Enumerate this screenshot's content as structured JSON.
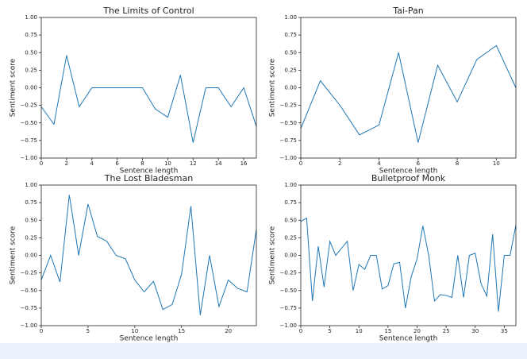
{
  "chart_data": [
    {
      "type": "line",
      "title": "The Limits of Control",
      "xlabel": "Sentence length",
      "ylabel": "Sentiment score",
      "color": "#1f77b4",
      "x": [
        0,
        1,
        2,
        3,
        4,
        5,
        6,
        7,
        8,
        9,
        10,
        11,
        12,
        13,
        14,
        15,
        16,
        17
      ],
      "values": [
        -0.27,
        -0.52,
        0.46,
        -0.27,
        0,
        0,
        0,
        0,
        0,
        -0.3,
        -0.42,
        0.18,
        -0.78,
        0,
        0,
        -0.27,
        0,
        -0.55
      ],
      "xlim": [
        0,
        17
      ],
      "xticks": [
        0,
        2,
        4,
        6,
        8,
        10,
        12,
        14,
        16
      ],
      "ylim": [
        -1,
        1
      ],
      "yticks": [
        {
          "value": -1,
          "label": "−1.00"
        },
        {
          "value": -0.75,
          "label": "−0.75"
        },
        {
          "value": -0.5,
          "label": "−0.50"
        },
        {
          "value": -0.25,
          "label": "−0.25"
        },
        {
          "value": 0,
          "label": "0.00"
        },
        0.25,
        {
          "value": 0.5,
          "label": "0.50"
        },
        0.75,
        {
          "value": 1,
          "label": "1.00"
        }
      ]
    },
    {
      "type": "line",
      "title": "Tai-Pan",
      "xlabel": "Sentence length",
      "ylabel": "Sentiment score",
      "color": "#1f77b4",
      "x": [
        0,
        1,
        2,
        3,
        4,
        5,
        6,
        7,
        8,
        9,
        10,
        11
      ],
      "values": [
        -0.58,
        0.1,
        -0.25,
        -0.67,
        -0.53,
        0.5,
        -0.78,
        0.32,
        -0.2,
        0.4,
        0.6,
        0
      ],
      "xlim": [
        0,
        11
      ],
      "xticks": [
        0,
        2,
        4,
        6,
        8,
        10
      ],
      "ylim": [
        -1,
        1
      ],
      "yticks": [
        {
          "value": -1,
          "label": "−1.00"
        },
        {
          "value": -0.75,
          "label": "−0.75"
        },
        {
          "value": -0.5,
          "label": "−0.50"
        },
        {
          "value": -0.25,
          "label": "−0.25"
        },
        {
          "value": 0,
          "label": "0.00"
        },
        0.25,
        {
          "value": 0.5,
          "label": "0.50"
        },
        0.75,
        {
          "value": 1,
          "label": "1.00"
        }
      ]
    },
    {
      "type": "line",
      "title": "The Lost Bladesman",
      "xlabel": "Sentence length",
      "ylabel": "Sentiment score",
      "color": "#1f77b4",
      "x": [
        0,
        1,
        2,
        3,
        4,
        5,
        6,
        7,
        8,
        9,
        10,
        11,
        12,
        13,
        14,
        15,
        16,
        17,
        18,
        19,
        20,
        21,
        22,
        23
      ],
      "values": [
        -0.35,
        0,
        -0.38,
        0.86,
        0,
        0.73,
        0.27,
        0.2,
        0,
        -0.05,
        -0.35,
        -0.52,
        -0.37,
        -0.77,
        -0.7,
        -0.27,
        0.7,
        -0.85,
        0,
        -0.73,
        -0.35,
        -0.47,
        -0.52,
        0.37
      ],
      "xlim": [
        0,
        23
      ],
      "xticks": [
        0,
        5,
        10,
        15,
        20
      ],
      "ylim": [
        -1,
        1
      ],
      "yticks": [
        {
          "value": -1,
          "label": "−1.00"
        },
        {
          "value": -0.75,
          "label": "−0.75"
        },
        {
          "value": -0.5,
          "label": "−0.50"
        },
        {
          "value": -0.25,
          "label": "−0.25"
        },
        {
          "value": 0,
          "label": "0.00"
        },
        0.25,
        {
          "value": 0.5,
          "label": "0.50"
        },
        0.75,
        {
          "value": 1,
          "label": "1.00"
        }
      ]
    },
    {
      "type": "line",
      "title": "Bulletproof Monk",
      "xlabel": "Sentence length",
      "ylabel": "Sentiment score",
      "color": "#1f77b4",
      "x": [
        0,
        1,
        2,
        3,
        4,
        5,
        6,
        7,
        8,
        9,
        10,
        11,
        12,
        13,
        14,
        15,
        16,
        17,
        18,
        19,
        20,
        21,
        22,
        23,
        24,
        25,
        26,
        27,
        28,
        29,
        30,
        31,
        32,
        33,
        34,
        35,
        36,
        37
      ],
      "values": [
        0.48,
        0.53,
        -0.65,
        0.13,
        -0.45,
        0.2,
        0,
        0.1,
        0.2,
        -0.5,
        -0.13,
        -0.2,
        0,
        0,
        -0.48,
        -0.43,
        -0.12,
        -0.1,
        -0.75,
        -0.3,
        -0.05,
        0.42,
        0,
        -0.65,
        -0.56,
        -0.57,
        -0.6,
        0,
        -0.6,
        0,
        0.03,
        -0.4,
        -0.58,
        0.3,
        -0.8,
        0,
        0,
        0.43
      ],
      "xlim": [
        0,
        37
      ],
      "xticks": [
        0,
        5,
        10,
        15,
        20,
        25,
        30,
        35
      ],
      "ylim": [
        -1,
        1
      ],
      "yticks": [
        {
          "value": -1,
          "label": "−1.00"
        },
        {
          "value": -0.75,
          "label": "−0.75"
        },
        {
          "value": -0.5,
          "label": "−0.50"
        },
        {
          "value": -0.25,
          "label": "−0.25"
        },
        {
          "value": 0,
          "label": "0.00"
        },
        0.25,
        {
          "value": 0.5,
          "label": "0.50"
        },
        0.75,
        {
          "value": 1,
          "label": "1.00"
        }
      ]
    }
  ]
}
